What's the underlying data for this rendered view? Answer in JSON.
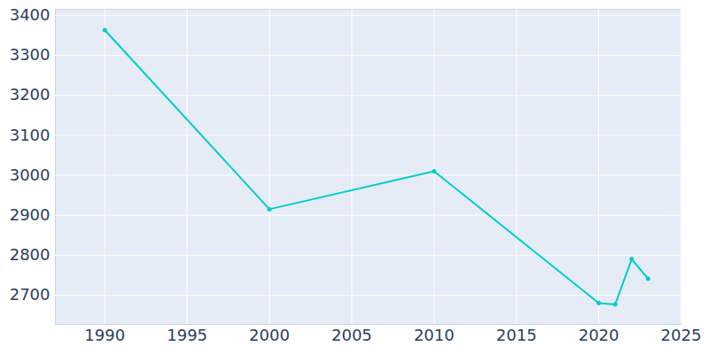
{
  "chart_data": {
    "type": "line",
    "x": [
      1990,
      2000,
      2010,
      2020,
      2021,
      2022,
      2023
    ],
    "values": [
      3363,
      2915,
      3010,
      2680,
      2677,
      2790,
      2741
    ],
    "color": "#00cccc",
    "marker": "circle",
    "xlim": [
      1987,
      2025
    ],
    "xticks": [
      1990,
      1995,
      2000,
      2005,
      2010,
      2015,
      2020,
      2025
    ],
    "ylim": [
      2627,
      3415
    ],
    "yticks": [
      2700,
      2800,
      2900,
      3000,
      3100,
      3200,
      3300,
      3400
    ],
    "grid": true
  }
}
